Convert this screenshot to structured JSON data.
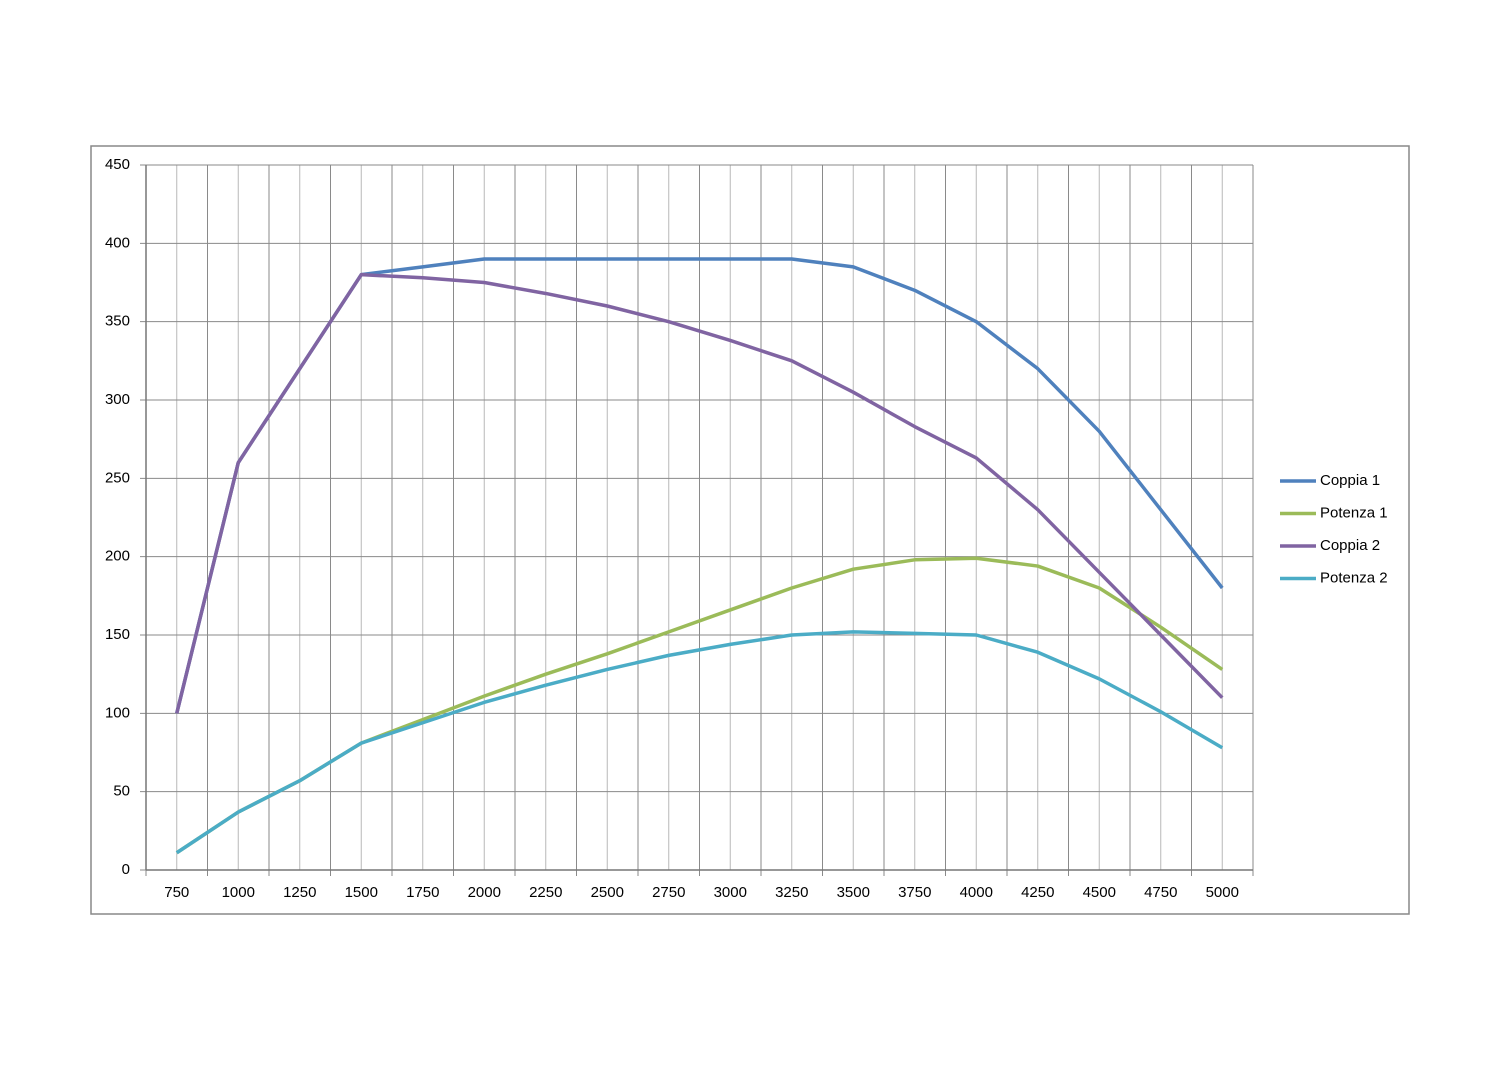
{
  "chart_data": {
    "type": "line",
    "categories": [
      "750",
      "1000",
      "1250",
      "1500",
      "1750",
      "2000",
      "2250",
      "2500",
      "2750",
      "3000",
      "3250",
      "3500",
      "3750",
      "4000",
      "4250",
      "4500",
      "4750",
      "5000"
    ],
    "series": [
      {
        "name": "Coppia 1",
        "color": "#4f81bd",
        "values": [
          100,
          260,
          320,
          380,
          385,
          390,
          390,
          390,
          390,
          390,
          390,
          385,
          370,
          350,
          320,
          280,
          230,
          180
        ]
      },
      {
        "name": "Potenza 1",
        "color": "#9bbb59",
        "values": [
          11,
          37,
          57,
          81,
          96,
          111,
          125,
          138,
          152,
          166,
          180,
          192,
          198,
          199,
          194,
          180,
          155,
          128
        ]
      },
      {
        "name": "Coppia 2",
        "color": "#8064a2",
        "values": [
          100,
          260,
          320,
          380,
          378,
          375,
          368,
          360,
          350,
          338,
          325,
          305,
          283,
          263,
          230,
          190,
          150,
          110
        ]
      },
      {
        "name": "Potenza 2",
        "color": "#4bacc6",
        "values": [
          11,
          37,
          57,
          81,
          94,
          107,
          118,
          128,
          137,
          144,
          150,
          152,
          151,
          150,
          139,
          122,
          101,
          78
        ]
      }
    ],
    "ylim": [
      0,
      450
    ],
    "yticks": [
      0,
      50,
      100,
      150,
      200,
      250,
      300,
      350,
      400,
      450
    ],
    "grid": true,
    "legend": "right"
  }
}
